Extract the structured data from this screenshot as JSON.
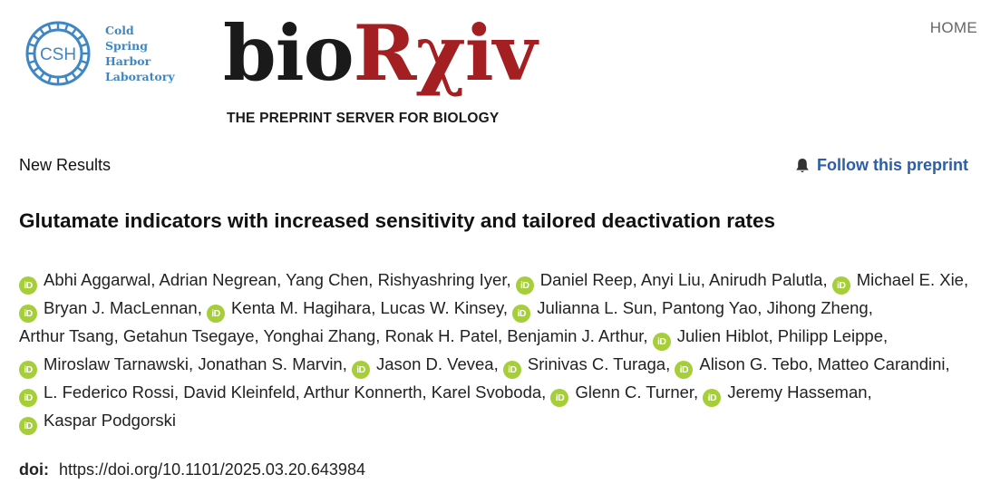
{
  "header": {
    "csh_lines": [
      "Cold",
      "Spring",
      "Harbor",
      "Laboratory"
    ],
    "csh_abbrev": "CSH",
    "brand_prefix": "bio",
    "brand_suffix": "Rχiv",
    "tagline": "THE PREPRINT SERVER FOR BIOLOGY",
    "home": "HOME"
  },
  "section_label": "New Results",
  "follow_label": "Follow this preprint",
  "title": "Glutamate indicators with increased sensitivity and tailored deactivation rates",
  "orcid_glyph": "iD",
  "authors": [
    {
      "name": "Abhi Aggarwal",
      "orcid": true
    },
    {
      "name": "Adrian Negrean",
      "orcid": false
    },
    {
      "name": "Yang Chen",
      "orcid": false
    },
    {
      "name": "Rishyashring Iyer",
      "orcid": false
    },
    {
      "name": "Daniel Reep",
      "orcid": true
    },
    {
      "name": "Anyi Liu",
      "orcid": false
    },
    {
      "name": "Anirudh Palutla",
      "orcid": false
    },
    {
      "name": "Michael E. Xie",
      "orcid": true
    },
    {
      "name": "Bryan J. MacLennan",
      "orcid": true
    },
    {
      "name": "Kenta M. Hagihara",
      "orcid": true
    },
    {
      "name": "Lucas W. Kinsey",
      "orcid": false
    },
    {
      "name": "Julianna L. Sun",
      "orcid": true
    },
    {
      "name": "Pantong Yao",
      "orcid": false
    },
    {
      "name": "Jihong Zheng",
      "orcid": false
    },
    {
      "name": "Arthur Tsang",
      "orcid": false
    },
    {
      "name": "Getahun Tsegaye",
      "orcid": false
    },
    {
      "name": "Yonghai Zhang",
      "orcid": false
    },
    {
      "name": "Ronak H. Patel",
      "orcid": false
    },
    {
      "name": "Benjamin J. Arthur",
      "orcid": false
    },
    {
      "name": "Julien Hiblot",
      "orcid": true
    },
    {
      "name": "Philipp Leippe",
      "orcid": false
    },
    {
      "name": "Miroslaw Tarnawski",
      "orcid": true
    },
    {
      "name": "Jonathan S. Marvin",
      "orcid": false
    },
    {
      "name": "Jason D. Vevea",
      "orcid": true
    },
    {
      "name": "Srinivas C. Turaga",
      "orcid": true
    },
    {
      "name": "Alison G. Tebo",
      "orcid": true
    },
    {
      "name": "Matteo Carandini",
      "orcid": false
    },
    {
      "name": "L. Federico Rossi",
      "orcid": true
    },
    {
      "name": "David Kleinfeld",
      "orcid": false
    },
    {
      "name": "Arthur Konnerth",
      "orcid": false
    },
    {
      "name": "Karel Svoboda",
      "orcid": false
    },
    {
      "name": "Glenn C. Turner",
      "orcid": true
    },
    {
      "name": "Jeremy Hasseman",
      "orcid": true
    },
    {
      "name": "Kaspar Podgorski",
      "orcid": true
    }
  ],
  "doi_label": "doi:",
  "doi_value": "https://doi.org/10.1101/2025.03.20.643984",
  "colors": {
    "csh_blue": "#3f87c4",
    "brand_red": "#a31f22",
    "link_blue": "#2c5ea8",
    "orcid_green": "#a6ce39"
  }
}
